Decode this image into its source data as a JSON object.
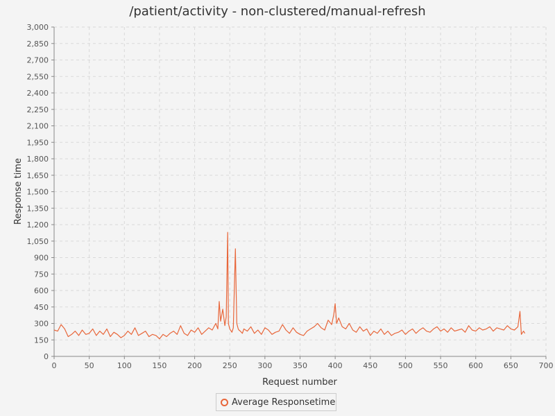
{
  "chart_data": {
    "type": "line",
    "title": "/patient/activity - non-clustered/manual-refresh",
    "xlabel": "Request number",
    "ylabel": "Response time",
    "xlim": [
      0,
      700
    ],
    "ylim": [
      0,
      3000
    ],
    "x_ticks": [
      0,
      50,
      100,
      150,
      200,
      250,
      300,
      350,
      400,
      450,
      500,
      550,
      600,
      650,
      700
    ],
    "y_ticks": [
      0,
      150,
      300,
      450,
      600,
      750,
      900,
      1050,
      1200,
      1350,
      1500,
      1650,
      1800,
      1950,
      2100,
      2250,
      2400,
      2550,
      2700,
      2850,
      3000
    ],
    "y_tick_labels": [
      "0",
      "150",
      "300",
      "450",
      "600",
      "750",
      "900",
      "1,050",
      "1,200",
      "1,350",
      "1,500",
      "1,650",
      "1,800",
      "1,950",
      "2,100",
      "2,250",
      "2,400",
      "2,550",
      "2,700",
      "2,850",
      "3,000"
    ],
    "grid": true,
    "legend_position": "bottom-center",
    "series": [
      {
        "name": "Average Responsetime",
        "color": "#e8663a",
        "x": [
          0,
          5,
          10,
          15,
          20,
          25,
          30,
          35,
          40,
          45,
          50,
          55,
          60,
          65,
          70,
          75,
          80,
          85,
          90,
          95,
          100,
          105,
          110,
          115,
          120,
          125,
          130,
          135,
          140,
          145,
          150,
          155,
          160,
          165,
          170,
          175,
          180,
          185,
          190,
          195,
          200,
          205,
          210,
          215,
          220,
          225,
          230,
          233,
          235,
          237,
          240,
          243,
          245,
          247,
          248,
          250,
          253,
          255,
          258,
          260,
          262,
          263,
          265,
          268,
          270,
          275,
          280,
          285,
          290,
          295,
          300,
          305,
          310,
          315,
          320,
          325,
          330,
          335,
          340,
          345,
          350,
          355,
          360,
          365,
          370,
          375,
          380,
          385,
          390,
          395,
          398,
          400,
          402,
          405,
          410,
          415,
          420,
          425,
          430,
          435,
          440,
          445,
          450,
          455,
          460,
          465,
          470,
          475,
          480,
          485,
          490,
          495,
          500,
          505,
          510,
          515,
          520,
          525,
          530,
          535,
          540,
          545,
          550,
          555,
          560,
          565,
          570,
          575,
          580,
          585,
          590,
          595,
          600,
          605,
          610,
          615,
          620,
          625,
          630,
          635,
          640,
          645,
          650,
          655,
          660,
          663,
          665,
          668,
          670
        ],
        "y": [
          240,
          230,
          290,
          250,
          180,
          200,
          230,
          190,
          240,
          200,
          210,
          250,
          190,
          230,
          200,
          250,
          180,
          220,
          200,
          170,
          190,
          230,
          200,
          260,
          190,
          210,
          230,
          180,
          200,
          190,
          160,
          200,
          180,
          210,
          230,
          200,
          280,
          210,
          190,
          240,
          220,
          260,
          200,
          230,
          260,
          240,
          300,
          250,
          500,
          320,
          430,
          280,
          360,
          1130,
          300,
          250,
          220,
          260,
          980,
          300,
          250,
          240,
          230,
          210,
          250,
          230,
          270,
          210,
          240,
          200,
          260,
          240,
          200,
          220,
          230,
          290,
          240,
          210,
          260,
          220,
          200,
          190,
          230,
          250,
          270,
          300,
          260,
          240,
          330,
          290,
          380,
          480,
          300,
          350,
          270,
          250,
          300,
          240,
          220,
          270,
          230,
          250,
          190,
          230,
          210,
          250,
          200,
          230,
          190,
          210,
          220,
          240,
          200,
          230,
          250,
          210,
          240,
          260,
          230,
          220,
          250,
          270,
          230,
          250,
          220,
          260,
          230,
          240,
          250,
          220,
          280,
          240,
          230,
          260,
          240,
          250,
          270,
          230,
          260,
          250,
          240,
          280,
          250,
          240,
          270,
          410,
          200,
          230,
          210
        ]
      }
    ]
  }
}
